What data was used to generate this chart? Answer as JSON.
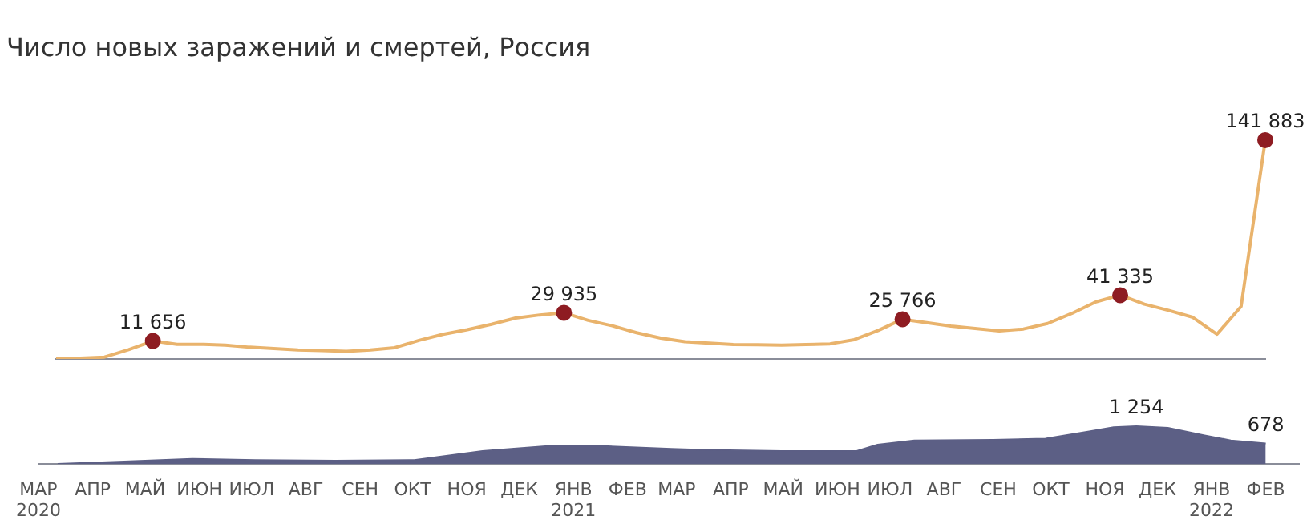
{
  "chart_data": [
    {
      "type": "line",
      "title": "Число новых заражений и смертей, Россия",
      "categories": [
        null,
        null,
        null,
        null,
        null,
        null,
        null,
        null,
        null,
        null,
        null,
        null,
        null,
        null,
        null,
        null,
        null,
        null,
        null,
        null,
        null,
        null,
        null,
        null,
        null,
        null,
        null,
        null,
        null,
        null,
        null,
        null,
        null,
        null,
        null,
        null,
        null,
        null,
        null,
        null,
        null,
        null,
        null,
        null,
        null,
        null,
        null,
        null,
        null,
        null,
        null
      ],
      "series": [
        {
          "color": "#e9b36c",
          "values": [
            0,
            500,
            1200,
            6000,
            11656,
            9500,
            9500,
            9000,
            7600,
            6800,
            5900,
            5400,
            4900,
            5800,
            7300,
            12000,
            16000,
            19000,
            22500,
            26500,
            28500,
            29935,
            25000,
            21500,
            17000,
            13500,
            11200,
            10200,
            9400,
            9200,
            9000,
            9300,
            9800,
            12500,
            18500,
            25766,
            23500,
            21300,
            19700,
            18200,
            19400,
            23000,
            29500,
            37000,
            41335,
            35500,
            31500,
            27000,
            16000,
            34000,
            141883
          ],
          "value_labels": [
            null,
            null,
            null,
            null,
            "11 656",
            null,
            null,
            null,
            null,
            null,
            null,
            null,
            null,
            null,
            null,
            null,
            null,
            null,
            null,
            null,
            null,
            "29 935",
            null,
            null,
            null,
            null,
            null,
            null,
            null,
            null,
            null,
            null,
            null,
            null,
            null,
            "25 766",
            null,
            null,
            null,
            null,
            null,
            null,
            null,
            null,
            "41 335",
            null,
            null,
            null,
            null,
            null,
            "141 883"
          ]
        }
      ],
      "tick_labels": false,
      "grid": false,
      "legend": false
    },
    {
      "type": "area",
      "x": [
        "2020-03-12",
        "2020-04-19",
        "2020-05-28",
        "2020-07-03",
        "2020-08-18",
        "2020-10-02",
        "2020-11-10",
        "2020-12-16",
        "2021-01-15",
        "2021-02-26",
        "2021-03-16",
        "2021-04-30",
        "2021-06-12",
        "2021-06-24",
        "2021-07-15",
        "2021-08-29",
        "2021-09-28",
        "2021-10-23",
        "2021-11-06",
        "2021-11-19",
        "2021-12-07",
        "2021-12-28",
        "2022-01-12",
        "2022-02-01"
      ],
      "series": [
        {
          "color": "#5c5f85",
          "values": [
            2,
            83,
            170,
            130,
            110,
            130,
            430,
            590,
            600,
            500,
            470,
            430,
            430,
            640,
            780,
            800,
            840,
            1080,
            1220,
            1254,
            1200,
            950,
            780,
            678
          ],
          "value_labels": [
            null,
            null,
            null,
            null,
            null,
            null,
            null,
            null,
            null,
            null,
            null,
            null,
            null,
            null,
            null,
            null,
            null,
            null,
            null,
            "1 254",
            null,
            null,
            null,
            "678"
          ]
        }
      ],
      "xlim": [
        "2020-03-01",
        "2022-02-20"
      ],
      "tick_labels": "x",
      "grid": false,
      "legend": false,
      "xticks": [
        {
          "value": "2020-03-01",
          "label": "МАР\n2020"
        },
        {
          "value": "2020-04-01",
          "label": "АПР"
        },
        {
          "value": "2020-05-01",
          "label": "МАЙ"
        },
        {
          "value": "2020-06-01",
          "label": "ИЮН"
        },
        {
          "value": "2020-07-01",
          "label": "ИЮЛ"
        },
        {
          "value": "2020-08-01",
          "label": "АВГ"
        },
        {
          "value": "2020-09-01",
          "label": "СЕН"
        },
        {
          "value": "2020-10-01",
          "label": "ОКТ"
        },
        {
          "value": "2020-11-01",
          "label": "НОЯ"
        },
        {
          "value": "2020-12-01",
          "label": "ДЕК"
        },
        {
          "value": "2021-01-01",
          "label": "ЯНВ\n2021"
        },
        {
          "value": "2021-02-01",
          "label": "ФЕВ"
        },
        {
          "value": "2021-03-01",
          "label": "МАР"
        },
        {
          "value": "2021-04-01",
          "label": "АПР"
        },
        {
          "value": "2021-05-01",
          "label": "МАЙ"
        },
        {
          "value": "2021-06-01",
          "label": "ИЮН"
        },
        {
          "value": "2021-07-01",
          "label": "ИЮЛ"
        },
        {
          "value": "2021-08-01",
          "label": "АВГ"
        },
        {
          "value": "2021-09-01",
          "label": "СЕН"
        },
        {
          "value": "2021-10-01",
          "label": "ОКТ"
        },
        {
          "value": "2021-11-01",
          "label": "НОЯ"
        },
        {
          "value": "2021-12-01",
          "label": "ДЕК"
        },
        {
          "value": "2022-01-01",
          "label": "ЯНВ\n2022"
        },
        {
          "value": "2022-02-01",
          "label": "ФЕВ"
        }
      ]
    }
  ]
}
